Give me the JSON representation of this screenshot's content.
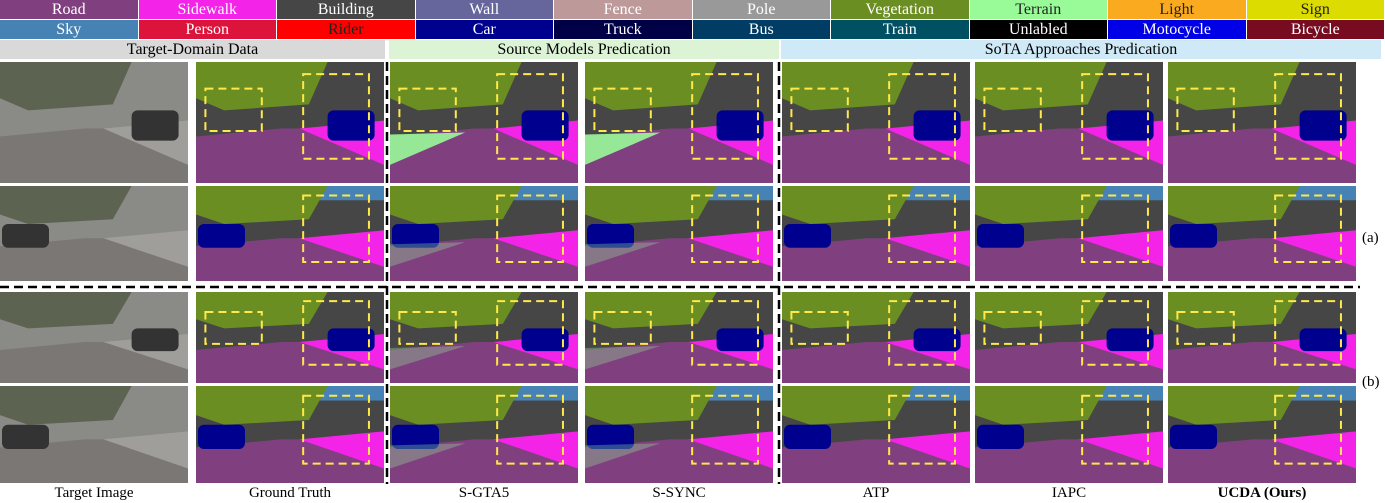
{
  "legend": [
    {
      "label": "Road",
      "color": "#804080"
    },
    {
      "label": "Sidewalk",
      "color": "#f423e8"
    },
    {
      "label": "Building",
      "color": "#464646"
    },
    {
      "label": "Wall",
      "color": "#66669c"
    },
    {
      "label": "Fence",
      "color": "#be9999"
    },
    {
      "label": "Pole",
      "color": "#999999"
    },
    {
      "label": "Vegetation",
      "color": "#6b8e23"
    },
    {
      "label": "Terrain",
      "color": "#98fb98"
    },
    {
      "label": "Light",
      "color": "#faaa1e"
    },
    {
      "label": "Sign",
      "color": "#dcdc00"
    },
    {
      "label": "Sky",
      "color": "#4682b4"
    },
    {
      "label": "Person",
      "color": "#dc143c"
    },
    {
      "label": "Rider",
      "color": "#ff0000"
    },
    {
      "label": "Car",
      "color": "#00008e"
    },
    {
      "label": "Truck",
      "color": "#000046"
    },
    {
      "label": "Bus",
      "color": "#003c64"
    },
    {
      "label": "Train",
      "color": "#005064"
    },
    {
      "label": "Unlabled",
      "color": "#000000"
    },
    {
      "label": "Motocycle",
      "color": "#0000e6"
    },
    {
      "label": "Bicycle",
      "color": "#770b20"
    }
  ],
  "headers": [
    "Target-Domain Data",
    "Source Models Predication",
    "SoTA Approaches Predication"
  ],
  "columns": [
    "Target Image",
    "Ground Truth",
    "S-GTA5",
    "S-SYNC",
    "ATP",
    "IAPC",
    "UCDA (Ours)"
  ],
  "row_groups": [
    "(a)",
    "(b)"
  ]
}
